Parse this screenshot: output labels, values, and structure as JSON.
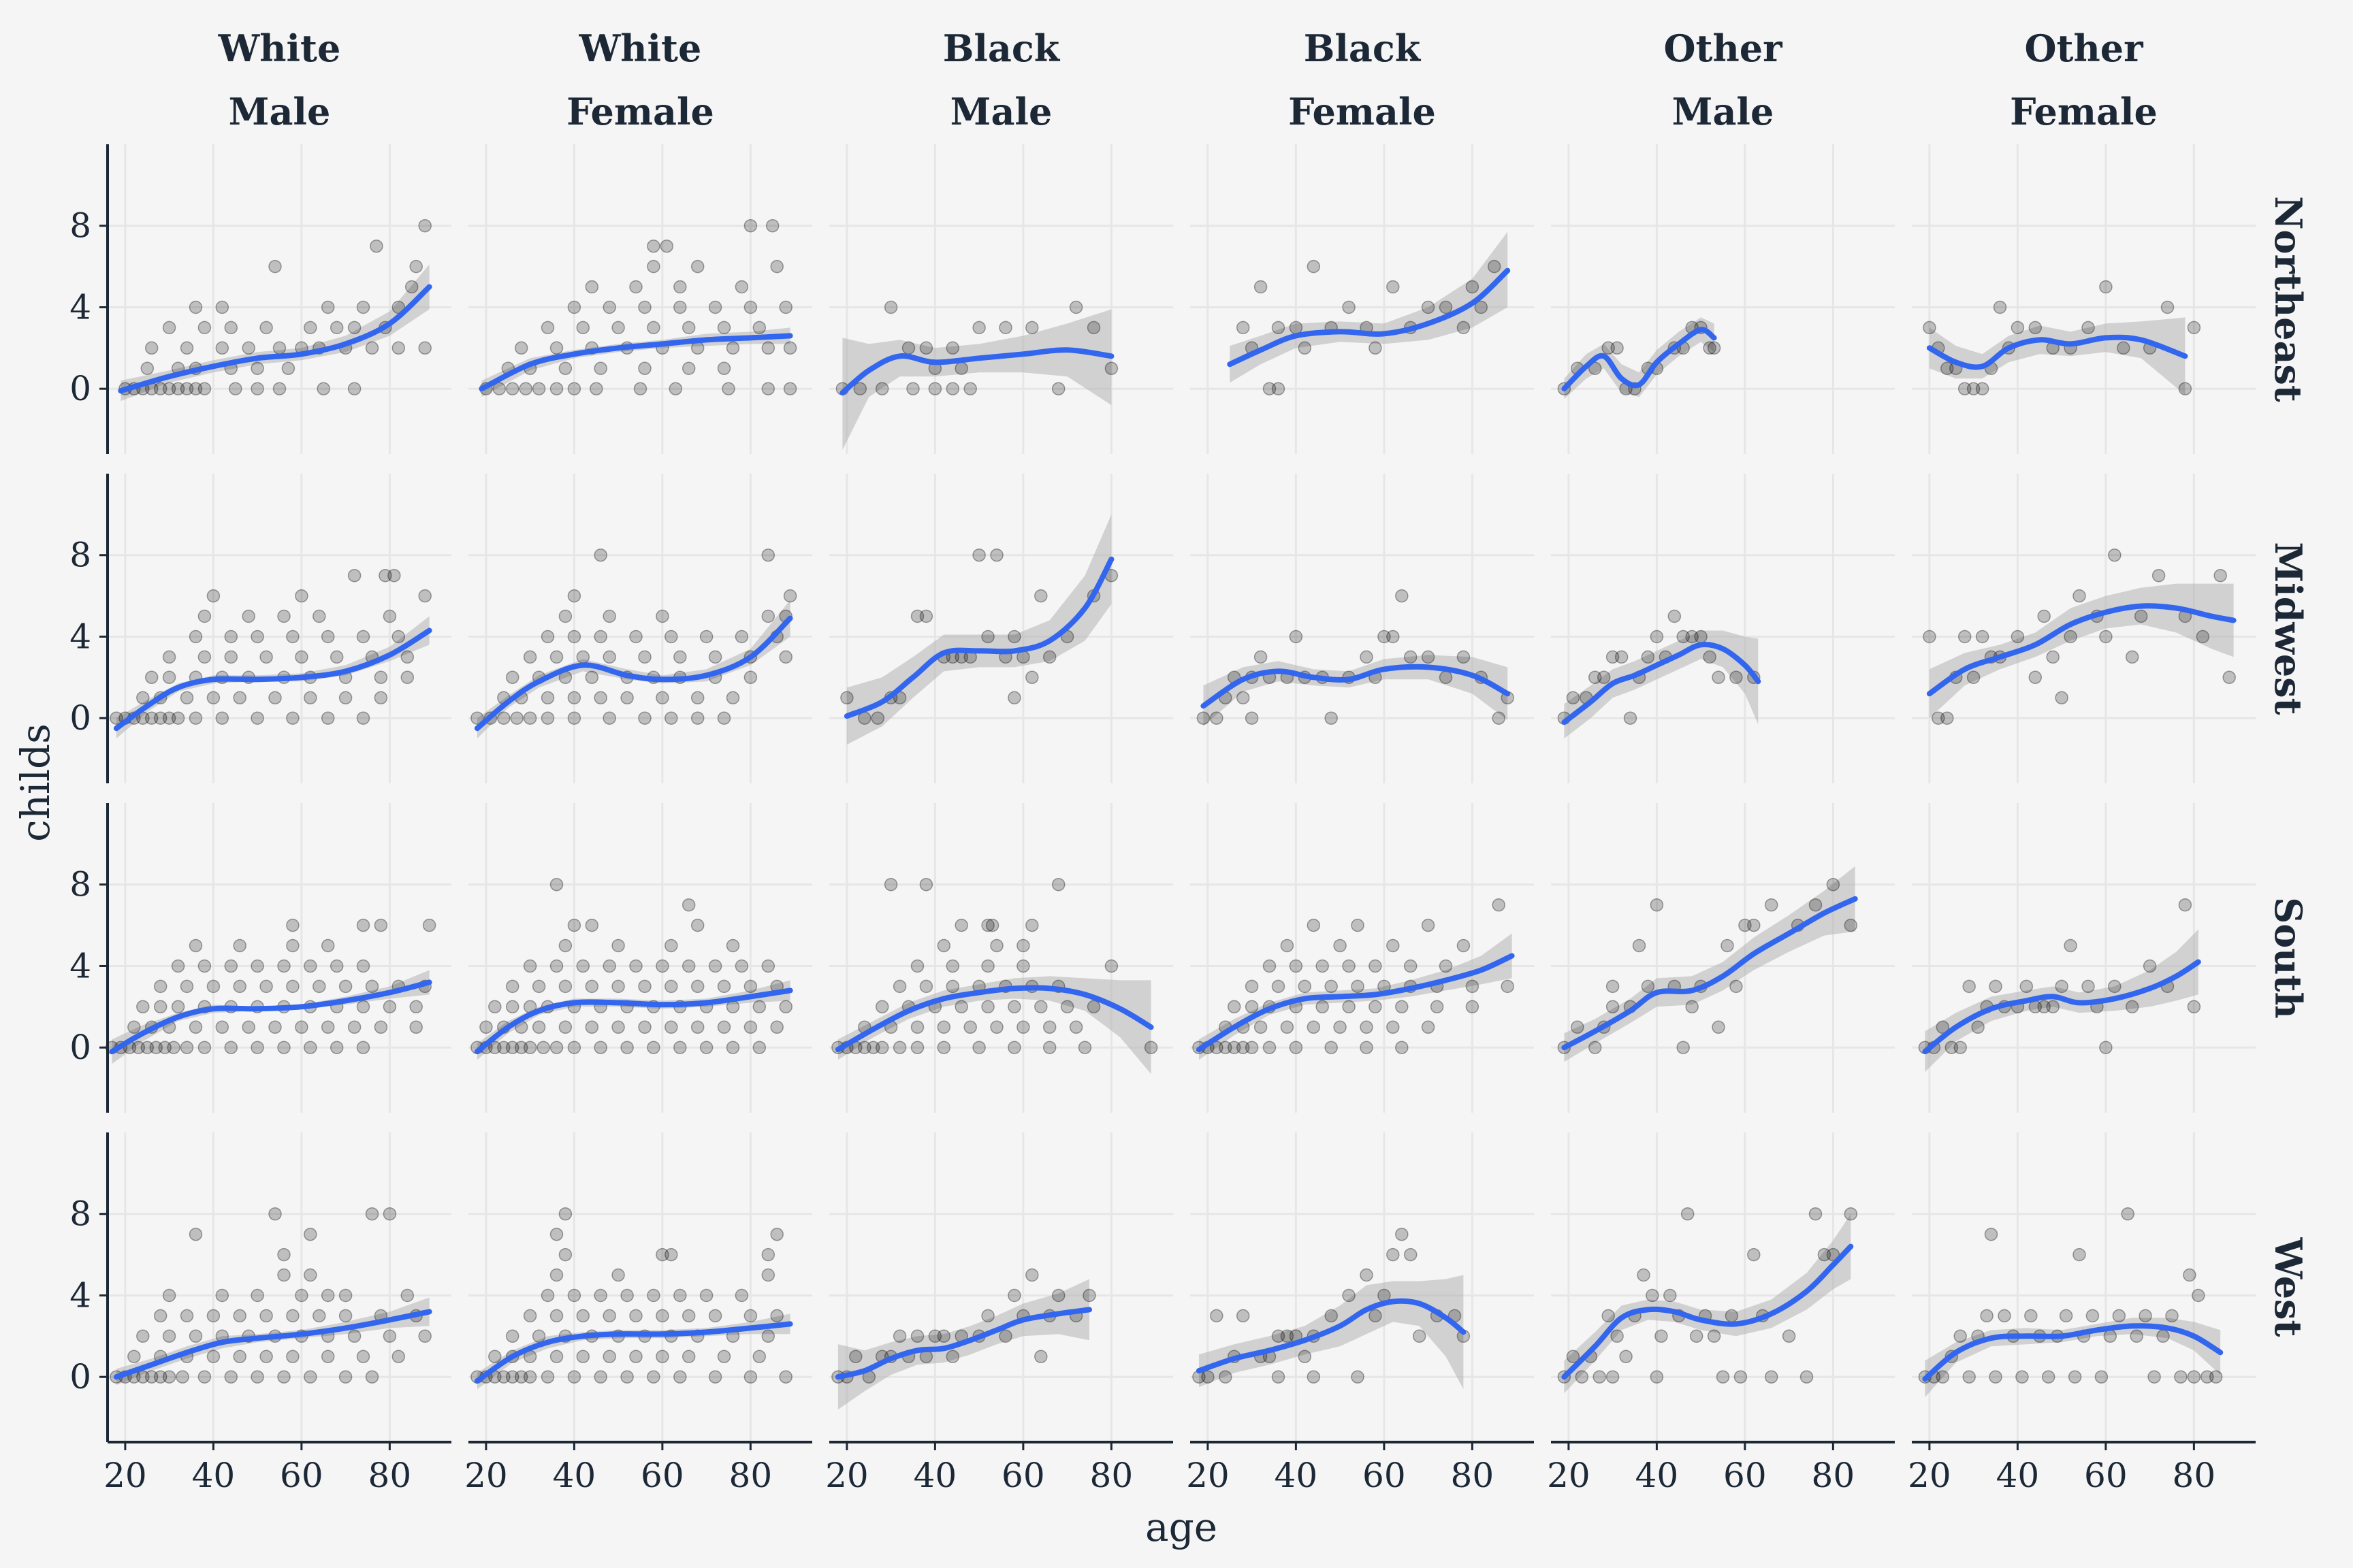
{
  "chart_data": {
    "type": "scatter",
    "xlabel": "age",
    "ylabel": "childs",
    "xlim": [
      16,
      94
    ],
    "ylim": [
      -3.2,
      12
    ],
    "x_ticks": [
      20,
      40,
      60,
      80
    ],
    "y_ticks": [
      0,
      4,
      8
    ],
    "grid": true,
    "smoother": "loess with confidence band",
    "colors": {
      "points": "#000000",
      "smooth_line": "#3366ee",
      "band": "#b3b3b3",
      "background": "#f5f5f5"
    },
    "column_facets": [
      {
        "race": "White",
        "sex": "Male"
      },
      {
        "race": "White",
        "sex": "Female"
      },
      {
        "race": "Black",
        "sex": "Male"
      },
      {
        "race": "Black",
        "sex": "Female"
      },
      {
        "race": "Other",
        "sex": "Male"
      },
      {
        "race": "Other",
        "sex": "Female"
      }
    ],
    "row_facets": [
      "Northeast",
      "Midwest",
      "South",
      "West"
    ],
    "panels": [
      [
        {
          "range": [
            19,
            89
          ],
          "smooth": [
            [
              19,
              -0.1
            ],
            [
              30,
              0.6
            ],
            [
              40,
              1.1
            ],
            [
              50,
              1.5
            ],
            [
              60,
              1.7
            ],
            [
              70,
              2.2
            ],
            [
              80,
              3.2
            ],
            [
              89,
              5.0
            ]
          ],
          "points": [
            [
              20,
              0
            ],
            [
              22,
              0
            ],
            [
              24,
              0
            ],
            [
              26,
              0
            ],
            [
              28,
              0
            ],
            [
              30,
              0
            ],
            [
              32,
              0
            ],
            [
              34,
              0
            ],
            [
              36,
              0
            ],
            [
              38,
              0
            ],
            [
              45,
              0
            ],
            [
              50,
              0
            ],
            [
              55,
              0
            ],
            [
              65,
              0
            ],
            [
              72,
              0
            ],
            [
              25,
              1
            ],
            [
              32,
              1
            ],
            [
              36,
              1
            ],
            [
              44,
              1
            ],
            [
              50,
              1
            ],
            [
              57,
              1
            ],
            [
              26,
              2
            ],
            [
              34,
              2
            ],
            [
              42,
              2
            ],
            [
              48,
              2
            ],
            [
              55,
              2
            ],
            [
              60,
              2
            ],
            [
              64,
              2
            ],
            [
              70,
              2
            ],
            [
              76,
              2
            ],
            [
              82,
              2
            ],
            [
              88,
              2
            ],
            [
              30,
              3
            ],
            [
              38,
              3
            ],
            [
              44,
              3
            ],
            [
              52,
              3
            ],
            [
              62,
              3
            ],
            [
              68,
              3
            ],
            [
              72,
              3
            ],
            [
              79,
              3
            ],
            [
              36,
              4
            ],
            [
              42,
              4
            ],
            [
              66,
              4
            ],
            [
              74,
              4
            ],
            [
              82,
              4
            ],
            [
              54,
              6
            ],
            [
              77,
              7
            ],
            [
              85,
              5
            ],
            [
              88,
              8
            ],
            [
              86,
              6
            ]
          ],
          "band_lo": [
            -0.6,
            0.3,
            0.8,
            1.2,
            1.4,
            1.8,
            2.6,
            3.9
          ],
          "band_hi": [
            0.4,
            0.9,
            1.4,
            1.8,
            2.0,
            2.6,
            3.8,
            6.1
          ]
        },
        {
          "range": [
            19,
            89
          ],
          "smooth": [
            [
              19,
              0
            ],
            [
              30,
              1.2
            ],
            [
              40,
              1.7
            ],
            [
              50,
              2.0
            ],
            [
              60,
              2.2
            ],
            [
              70,
              2.4
            ],
            [
              80,
              2.5
            ],
            [
              89,
              2.6
            ]
          ],
          "points": [
            [
              20,
              0
            ],
            [
              23,
              0
            ],
            [
              26,
              0
            ],
            [
              29,
              0
            ],
            [
              32,
              0
            ],
            [
              36,
              0
            ],
            [
              40,
              0
            ],
            [
              45,
              0
            ],
            [
              55,
              0
            ],
            [
              63,
              0
            ],
            [
              75,
              0
            ],
            [
              84,
              0
            ],
            [
              89,
              0
            ],
            [
              25,
              1
            ],
            [
              30,
              1
            ],
            [
              38,
              1
            ],
            [
              46,
              1
            ],
            [
              56,
              1
            ],
            [
              66,
              1
            ],
            [
              74,
              1
            ],
            [
              28,
              2
            ],
            [
              36,
              2
            ],
            [
              44,
              2
            ],
            [
              52,
              2
            ],
            [
              60,
              2
            ],
            [
              68,
              2
            ],
            [
              76,
              2
            ],
            [
              84,
              2
            ],
            [
              89,
              2
            ],
            [
              34,
              3
            ],
            [
              42,
              3
            ],
            [
              50,
              3
            ],
            [
              58,
              3
            ],
            [
              66,
              3
            ],
            [
              74,
              3
            ],
            [
              82,
              3
            ],
            [
              40,
              4
            ],
            [
              48,
              4
            ],
            [
              56,
              4
            ],
            [
              64,
              4
            ],
            [
              72,
              4
            ],
            [
              80,
              4
            ],
            [
              88,
              4
            ],
            [
              44,
              5
            ],
            [
              54,
              5
            ],
            [
              64,
              5
            ],
            [
              78,
              5
            ],
            [
              58,
              6
            ],
            [
              68,
              6
            ],
            [
              86,
              6
            ],
            [
              58,
              7
            ],
            [
              61,
              7
            ],
            [
              80,
              8
            ],
            [
              85,
              8
            ]
          ],
          "band_lo": [
            -0.4,
            0.9,
            1.5,
            1.8,
            2.0,
            2.1,
            2.2,
            2.2
          ],
          "band_hi": [
            0.4,
            1.5,
            1.9,
            2.2,
            2.4,
            2.7,
            2.8,
            3.0
          ]
        }
      ]
    ]
  },
  "col_strips": [
    {
      "race": "White",
      "sex": "Male"
    },
    {
      "race": "White",
      "sex": "Female"
    },
    {
      "race": "Black",
      "sex": "Male"
    },
    {
      "race": "Black",
      "sex": "Female"
    },
    {
      "race": "Other",
      "sex": "Male"
    },
    {
      "race": "Other",
      "sex": "Female"
    }
  ],
  "row_strips": [
    "Northeast",
    "Midwest",
    "South",
    "West"
  ],
  "axis": {
    "x_title": "age",
    "y_title": "childs",
    "x_ticks": [
      "20",
      "40",
      "60",
      "80"
    ],
    "y_ticks": [
      "0",
      "4",
      "8"
    ]
  }
}
